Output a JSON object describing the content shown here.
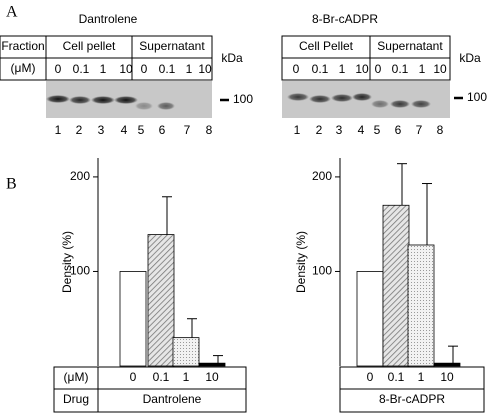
{
  "panel_a": {
    "label": "A",
    "blots": [
      {
        "title": "Dantrolene",
        "fraction_label": "Fraction",
        "pellet_label": "Cell pellet",
        "supernatant_label": "Supernatant",
        "kda_label": "kDa",
        "unit_label": "(μM)",
        "concentrations": [
          "0",
          "0.1",
          "1",
          "10",
          "0",
          "0.1",
          "1",
          "10"
        ],
        "marker": "100",
        "lanes": [
          "1",
          "2",
          "3",
          "4",
          "5",
          "6",
          "7",
          "8"
        ]
      },
      {
        "title": "8-Br-cADPR",
        "pellet_label": "Cell Pellet",
        "supernatant_label": "Supernatant",
        "kda_label": "kDa",
        "concentrations": [
          "0",
          "0.1",
          "1",
          "10",
          "0",
          "0.1",
          "1",
          "10"
        ],
        "marker": "100",
        "lanes": [
          "1",
          "2",
          "3",
          "4",
          "5",
          "6",
          "7",
          "8"
        ]
      }
    ]
  },
  "panel_b_label": "B",
  "chart_data": [
    {
      "type": "bar",
      "ylabel": "Density (%)",
      "categories": [
        "0",
        "0.1",
        "1",
        "10"
      ],
      "values": [
        100,
        139,
        30,
        3
      ],
      "errors": [
        0,
        40,
        20,
        8
      ],
      "ylim": [
        0,
        220
      ],
      "yticks": [
        100,
        200
      ],
      "unit_label": "(μM)",
      "drug_label": "Drug",
      "drug": "Dantrolene"
    },
    {
      "type": "bar",
      "ylabel": "Density (%)",
      "categories": [
        "0",
        "0.1",
        "1",
        "10"
      ],
      "values": [
        100,
        170,
        128,
        3
      ],
      "errors": [
        0,
        44,
        65,
        18
      ],
      "ylim": [
        0,
        220
      ],
      "yticks": [
        100,
        200
      ],
      "drug": "8-Br-cADPR"
    }
  ]
}
